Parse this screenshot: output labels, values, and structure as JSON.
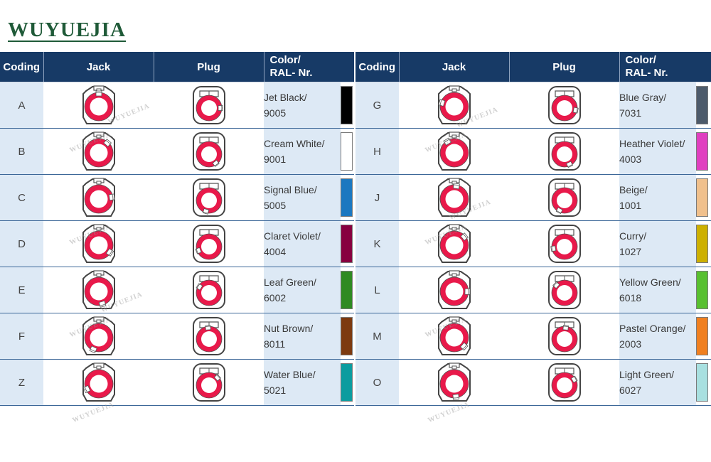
{
  "brand": "WUYUEJIA",
  "headers": {
    "coding": "Coding",
    "jack": "Jack",
    "plug": "Plug",
    "color_line1": "Color/",
    "color_line2": "RAL- Nr."
  },
  "left_rows": [
    {
      "code": "A",
      "name": "Jet Black/",
      "ral": "9005",
      "hex": "#000000"
    },
    {
      "code": "B",
      "name": "Cream White/",
      "ral": "9001",
      "hex": "#ffffff"
    },
    {
      "code": "C",
      "name": "Signal Blue/",
      "ral": "5005",
      "hex": "#1c78c0"
    },
    {
      "code": "D",
      "name": "Claret Violet/",
      "ral": "4004",
      "hex": "#87003f"
    },
    {
      "code": "E",
      "name": "Leaf Green/",
      "ral": "6002",
      "hex": "#2f8a22"
    },
    {
      "code": "F",
      "name": "Nut Brown/",
      "ral": "8011",
      "hex": "#7d3a10"
    },
    {
      "code": "Z",
      "name": "Water Blue/",
      "ral": "5021",
      "hex": "#0c9c9f"
    }
  ],
  "right_rows": [
    {
      "code": "G",
      "name": "Blue Gray/",
      "ral": "7031",
      "hex": "#4d5b6b"
    },
    {
      "code": "H",
      "name": "Heather Violet/",
      "ral": "4003",
      "hex": "#e040c0"
    },
    {
      "code": "J",
      "name": "Beige/",
      "ral": "1001",
      "hex": "#f0c08c"
    },
    {
      "code": "K",
      "name": "Curry/",
      "ral": "1027",
      "hex": "#cdb000"
    },
    {
      "code": "L",
      "name": "Yellow Green/",
      "ral": "6018",
      "hex": "#58c030"
    },
    {
      "code": "M",
      "name": "Pastel Orange/",
      "ral": "2003",
      "hex": "#f08020"
    },
    {
      "code": "O",
      "name": "Light Green/",
      "ral": "6027",
      "hex": "#a8e0e0"
    }
  ],
  "colors": {
    "header_bg": "#173a66",
    "cell_bg": "#dde9f5",
    "connector_red": "#e8194a",
    "brand_green": "#1f5a38"
  }
}
